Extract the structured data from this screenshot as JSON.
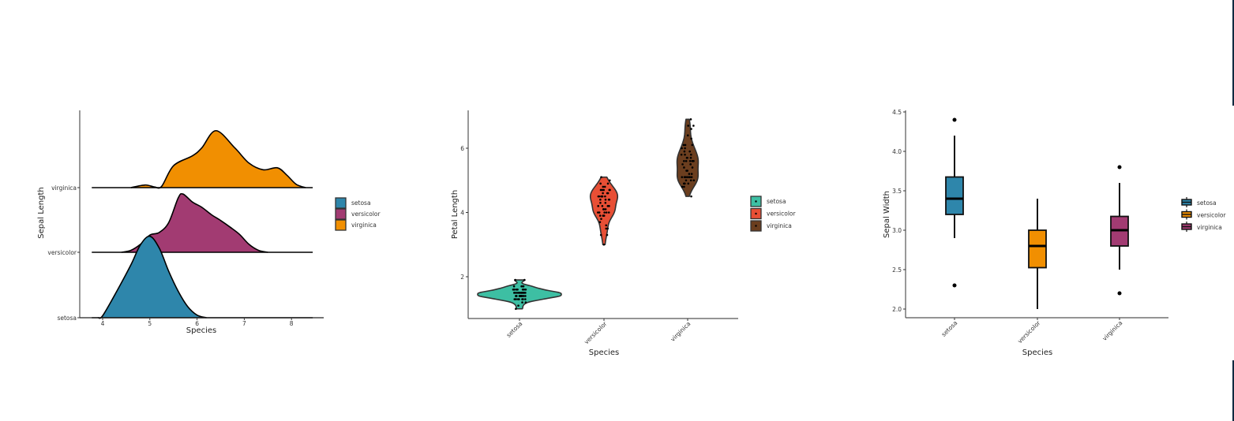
{
  "colors": {
    "setosa": "#2e86ab",
    "versicolor": "#a23b72",
    "virginica": "#f18f01",
    "violin_setosa": "#3dbfa3",
    "violin_versicolor": "#e84f35",
    "violin_virginica": "#6b3e1f",
    "edge_bar": "#0f2a40"
  },
  "chart_data": [
    {
      "type": "ridgeline",
      "xlabel": "Species",
      "ylabel": "Sepal Length",
      "x_ticks": [
        4,
        5,
        6,
        7,
        8
      ],
      "xlim": [
        3.77,
        8.45
      ],
      "categories": [
        "setosa",
        "versicolor",
        "virginica"
      ],
      "legend": {
        "position": "right",
        "entries": [
          "setosa",
          "versicolor",
          "virginica"
        ]
      },
      "series": [
        {
          "name": "setosa",
          "x": [
            3.9,
            4.0,
            4.3,
            4.6,
            4.8,
            5.0,
            5.2,
            5.4,
            5.6,
            5.8,
            6.0,
            6.2
          ],
          "density": [
            0,
            0.03,
            0.4,
            0.8,
            1.1,
            1.23,
            1.05,
            0.7,
            0.4,
            0.17,
            0.04,
            0
          ]
        },
        {
          "name": "versicolor",
          "x": [
            4.4,
            4.6,
            4.8,
            5.0,
            5.2,
            5.4,
            5.6,
            5.7,
            5.9,
            6.1,
            6.3,
            6.5,
            6.7,
            6.9,
            7.1,
            7.3,
            7.5
          ],
          "density": [
            0,
            0.03,
            0.12,
            0.26,
            0.3,
            0.45,
            0.82,
            0.88,
            0.76,
            0.68,
            0.57,
            0.48,
            0.38,
            0.27,
            0.12,
            0.03,
            0
          ]
        },
        {
          "name": "virginica",
          "x": [
            4.6,
            4.9,
            5.1,
            5.25,
            5.5,
            5.9,
            6.1,
            6.4,
            6.8,
            7.1,
            7.4,
            7.7,
            7.9,
            8.1,
            8.3
          ],
          "density": [
            0,
            0.04,
            0.01,
            0.02,
            0.33,
            0.48,
            0.6,
            0.86,
            0.6,
            0.37,
            0.27,
            0.3,
            0.19,
            0.05,
            0
          ]
        }
      ],
      "grid": false
    },
    {
      "type": "violin",
      "xlabel": "Species",
      "ylabel": "Petal Length",
      "y_ticks": [
        2,
        4,
        6
      ],
      "categories": [
        "setosa",
        "versicolor",
        "virginica"
      ],
      "legend": {
        "position": "right",
        "entries": [
          "setosa",
          "versicolor",
          "virginica"
        ]
      },
      "series": [
        {
          "name": "setosa",
          "values": [
            1.4,
            1.4,
            1.3,
            1.5,
            1.4,
            1.7,
            1.4,
            1.5,
            1.4,
            1.5,
            1.5,
            1.6,
            1.4,
            1.1,
            1.2,
            1.5,
            1.3,
            1.4,
            1.7,
            1.5,
            1.7,
            1.5,
            1.0,
            1.7,
            1.9,
            1.6,
            1.6,
            1.5,
            1.4,
            1.6,
            1.6,
            1.5,
            1.5,
            1.4,
            1.5,
            1.2,
            1.3,
            1.4,
            1.3,
            1.5,
            1.3,
            1.3,
            1.3,
            1.6,
            1.9,
            1.4,
            1.6,
            1.4,
            1.5,
            1.4
          ]
        },
        {
          "name": "versicolor",
          "values": [
            4.7,
            4.5,
            4.9,
            4.0,
            4.6,
            4.5,
            4.7,
            3.3,
            4.6,
            3.9,
            3.5,
            4.2,
            4.0,
            4.7,
            3.6,
            4.4,
            4.5,
            4.1,
            4.5,
            3.9,
            4.8,
            4.0,
            4.9,
            4.7,
            4.3,
            4.4,
            4.8,
            5.0,
            4.5,
            3.5,
            3.8,
            3.7,
            3.9,
            5.1,
            4.5,
            4.5,
            4.7,
            4.4,
            4.1,
            4.0,
            4.4,
            4.6,
            4.0,
            3.3,
            4.2,
            4.2,
            4.2,
            4.3,
            3.0,
            4.1
          ]
        },
        {
          "name": "virginica",
          "values": [
            6.0,
            5.1,
            5.9,
            5.6,
            5.8,
            6.6,
            4.5,
            6.3,
            5.8,
            6.1,
            5.1,
            5.3,
            5.5,
            5.0,
            5.1,
            5.3,
            5.5,
            6.7,
            6.9,
            5.0,
            5.7,
            4.9,
            6.7,
            4.9,
            5.7,
            6.0,
            4.8,
            4.9,
            5.6,
            5.8,
            6.1,
            6.4,
            5.6,
            5.1,
            5.6,
            6.1,
            5.6,
            5.5,
            4.8,
            5.4,
            5.6,
            5.1,
            5.1,
            5.9,
            5.7,
            5.2,
            5.0,
            5.2,
            5.4,
            5.1
          ]
        }
      ],
      "grid": false
    },
    {
      "type": "box",
      "xlabel": "Species",
      "ylabel": "Sepal Width",
      "y_ticks": [
        "2.0",
        "2.5",
        "3.0",
        "3.5",
        "4.0",
        "4.5"
      ],
      "categories": [
        "setosa",
        "versicolor",
        "virginica"
      ],
      "legend": {
        "position": "right",
        "entries": [
          "setosa",
          "versicolor",
          "virginica"
        ]
      },
      "series": [
        {
          "name": "setosa",
          "whisker_low": 2.9,
          "q1": 3.2,
          "median": 3.4,
          "q3": 3.675,
          "whisker_high": 4.2,
          "outliers": [
            4.4,
            2.3
          ]
        },
        {
          "name": "versicolor",
          "whisker_low": 2.0,
          "q1": 2.525,
          "median": 2.8,
          "q3": 3.0,
          "whisker_high": 3.4,
          "outliers": []
        },
        {
          "name": "virginica",
          "whisker_low": 2.5,
          "q1": 2.8,
          "median": 3.0,
          "q3": 3.175,
          "whisker_high": 3.6,
          "outliers": [
            3.8,
            2.2
          ]
        }
      ],
      "grid": false
    }
  ]
}
